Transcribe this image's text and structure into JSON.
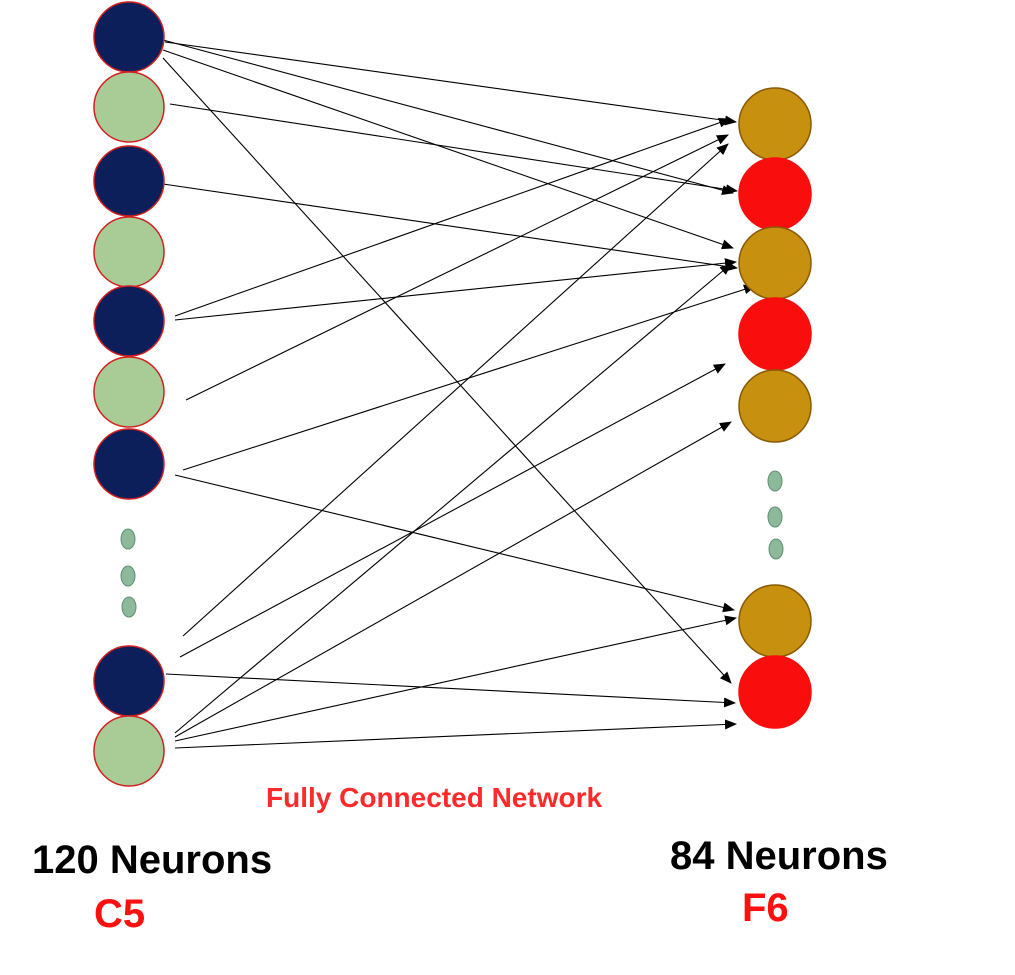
{
  "diagram_title": "Fully Connected Network",
  "left_layer": {
    "count_label": "120 Neurons",
    "name": "C5"
  },
  "right_layer": {
    "count_label": "84 Neurons",
    "name": "F6"
  },
  "colors": {
    "left_dark": "#0c1f5a",
    "left_light": "#a9cc96",
    "right_gold": "#c8900f",
    "right_red": "#f90d0d",
    "outline": "#d12020",
    "dots": "#8db99a",
    "arrow": "#000000",
    "title": "#ff2a2a",
    "layer_name": "#ff1010"
  },
  "left_nodes": [
    "dark",
    "light",
    "dark",
    "light",
    "dark",
    "light",
    "dark",
    "ellipsis",
    "dark",
    "light"
  ],
  "right_nodes": [
    "gold",
    "red",
    "gold",
    "red",
    "gold",
    "ellipsis",
    "gold",
    "red"
  ]
}
